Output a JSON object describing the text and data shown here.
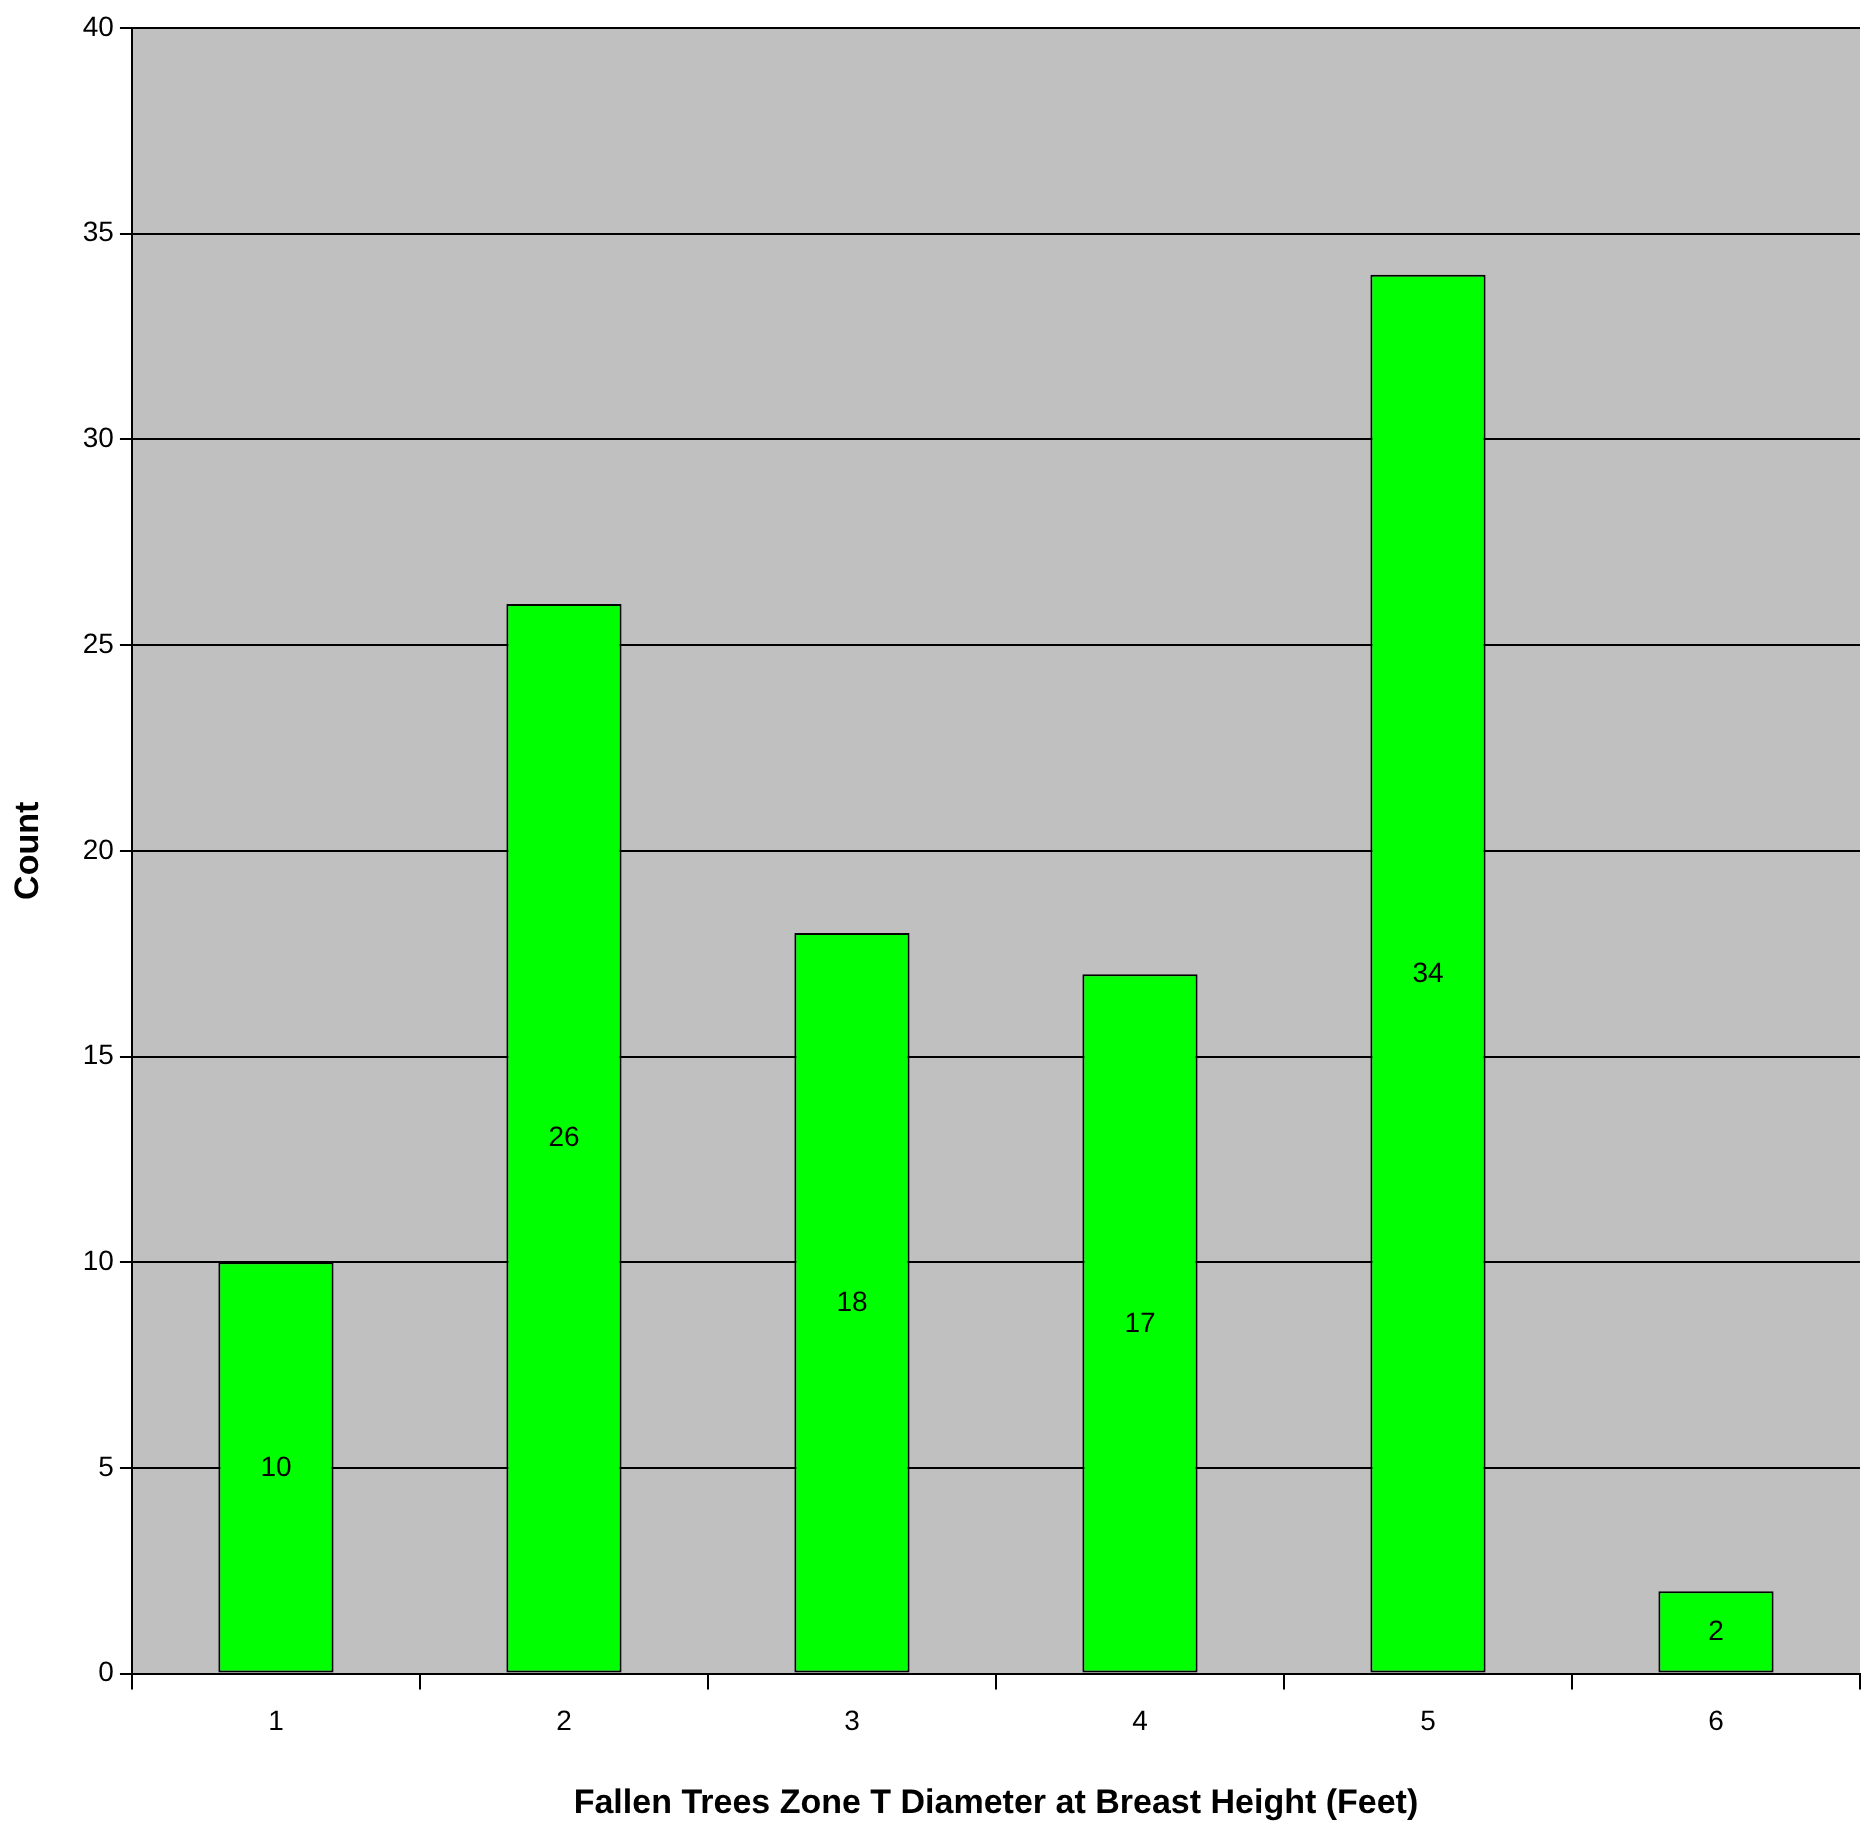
{
  "chart_data": {
    "type": "bar",
    "xlabel": "Fallen Trees Zone T Diameter at Breast Height (Feet)",
    "ylabel": "Count",
    "categories": [
      "1",
      "2",
      "3",
      "4",
      "5",
      "6"
    ],
    "values": [
      10,
      26,
      18,
      17,
      34,
      2
    ],
    "color": "#00ff00",
    "ylim": [
      0,
      40
    ],
    "yticks": [
      0,
      5,
      10,
      15,
      20,
      25,
      30,
      35,
      40
    ],
    "grid": "y",
    "data_labels": true,
    "legend": false
  }
}
